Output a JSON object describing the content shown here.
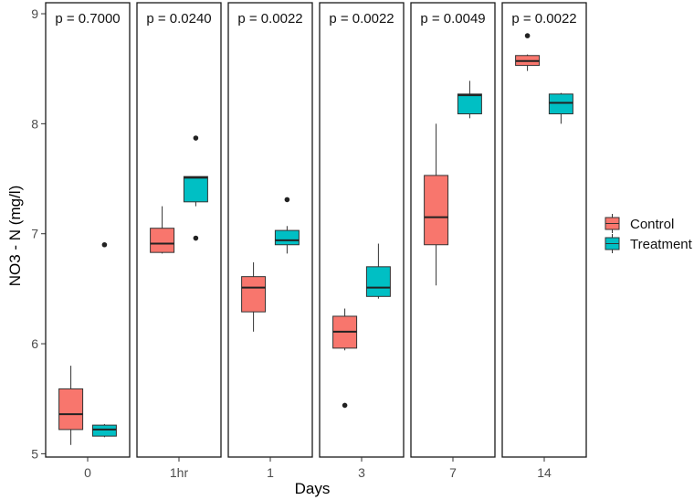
{
  "chart_data": {
    "type": "boxplot",
    "xlabel": "Days",
    "ylabel": "NO3 - N  (mg/l)",
    "ylim": [
      4.97,
      9.1
    ],
    "yticks": [
      5,
      6,
      7,
      8,
      9
    ],
    "grid": false,
    "legend": {
      "position": "right",
      "items": [
        {
          "name": "Control",
          "color": "#F8766D"
        },
        {
          "name": "Treatment",
          "color": "#00BFC4"
        }
      ]
    },
    "panels": [
      {
        "label": "0",
        "pvalue": "p = 0.7000",
        "boxes": [
          {
            "series": "Control",
            "min": 5.08,
            "q1": 5.22,
            "median": 5.36,
            "q3": 5.59,
            "max": 5.8,
            "outliers": []
          },
          {
            "series": "Treatment",
            "min": 5.15,
            "q1": 5.16,
            "median": 5.22,
            "q3": 5.26,
            "max": 5.27,
            "outliers": [
              6.9
            ]
          }
        ]
      },
      {
        "label": "1hr",
        "pvalue": "p = 0.0240",
        "boxes": [
          {
            "series": "Control",
            "min": 6.82,
            "q1": 6.83,
            "median": 6.91,
            "q3": 7.05,
            "max": 7.25,
            "outliers": []
          },
          {
            "series": "Treatment",
            "min": 7.25,
            "q1": 7.29,
            "median": 7.51,
            "q3": 7.52,
            "max": 7.52,
            "outliers": [
              7.87,
              6.96
            ]
          }
        ]
      },
      {
        "label": "1",
        "pvalue": "p = 0.0022",
        "boxes": [
          {
            "series": "Control",
            "min": 6.11,
            "q1": 6.29,
            "median": 6.51,
            "q3": 6.61,
            "max": 6.74,
            "outliers": []
          },
          {
            "series": "Treatment",
            "min": 6.82,
            "q1": 6.9,
            "median": 6.94,
            "q3": 7.03,
            "max": 7.07,
            "outliers": [
              7.31
            ]
          }
        ]
      },
      {
        "label": "3",
        "pvalue": "p = 0.0022",
        "boxes": [
          {
            "series": "Control",
            "min": 5.94,
            "q1": 5.96,
            "median": 6.11,
            "q3": 6.25,
            "max": 6.32,
            "outliers": [
              5.44
            ]
          },
          {
            "series": "Treatment",
            "min": 6.41,
            "q1": 6.43,
            "median": 6.51,
            "q3": 6.7,
            "max": 6.91,
            "outliers": []
          }
        ]
      },
      {
        "label": "7",
        "pvalue": "p = 0.0049",
        "boxes": [
          {
            "series": "Control",
            "min": 6.53,
            "q1": 6.9,
            "median": 7.15,
            "q3": 7.53,
            "max": 8.0,
            "outliers": []
          },
          {
            "series": "Treatment",
            "min": 8.05,
            "q1": 8.09,
            "median": 8.26,
            "q3": 8.27,
            "max": 8.39,
            "outliers": []
          }
        ]
      },
      {
        "label": "14",
        "pvalue": "p = 0.0022",
        "boxes": [
          {
            "series": "Control",
            "min": 8.48,
            "q1": 8.53,
            "median": 8.57,
            "q3": 8.62,
            "max": 8.63,
            "outliers": [
              8.8
            ]
          },
          {
            "series": "Treatment",
            "min": 8.0,
            "q1": 8.09,
            "median": 8.19,
            "q3": 8.27,
            "max": 8.28,
            "outliers": []
          }
        ]
      }
    ]
  }
}
